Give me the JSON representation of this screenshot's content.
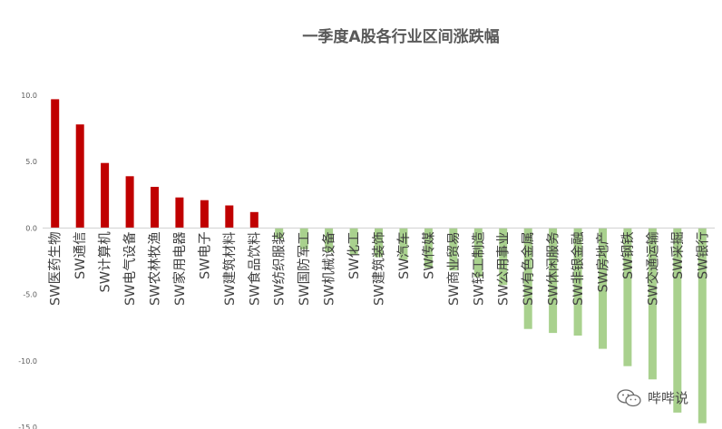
{
  "chart_data": {
    "type": "bar",
    "title": "一季度A股各行业区间涨跌幅",
    "xlabel": "",
    "ylabel": "",
    "ylim": [
      -15,
      10
    ],
    "yticks": [
      {
        "value": 10,
        "label": "10.0"
      },
      {
        "value": 5,
        "label": "5.0"
      },
      {
        "value": 0,
        "label": "0.0"
      },
      {
        "value": -5,
        "label": "-5.0"
      },
      {
        "value": -10,
        "label": "-10.0"
      },
      {
        "value": -15,
        "label": "-15.0"
      }
    ],
    "categories": [
      "SW医药生物",
      "SW通信",
      "SW计算机",
      "SW电气设备",
      "SW农林牧渔",
      "SW家用电器",
      "SW电子",
      "SW建筑材料",
      "SW食品饮料",
      "SW纺织服装",
      "SW国防军工",
      "SW机械设备",
      "SW化工",
      "SW建筑装饰",
      "SW汽车",
      "SW传媒",
      "SW商业贸易",
      "SW轻工制造",
      "SW公用事业",
      "SW有色金属",
      "SW休闲服务",
      "SW非银金融",
      "SW房地产",
      "SW钢铁",
      "SW交通运输",
      "SW采掘",
      "SW银行"
    ],
    "values": [
      9.7,
      7.8,
      4.9,
      3.9,
      3.1,
      2.3,
      2.1,
      1.7,
      1.2,
      -0.8,
      -1.6,
      -1.8,
      -2.0,
      -2.2,
      -2.4,
      -3.0,
      -3.2,
      -3.7,
      -4.3,
      -7.6,
      -7.9,
      -8.1,
      -9.1,
      -10.4,
      -11.4,
      -13.9,
      -14.7
    ],
    "colors": {
      "positive": "#c00000",
      "negative": "#a9d18e"
    },
    "grid": false,
    "legend": "none"
  },
  "watermark": {
    "icon": "wechat-icon",
    "text": "哔哔说"
  }
}
